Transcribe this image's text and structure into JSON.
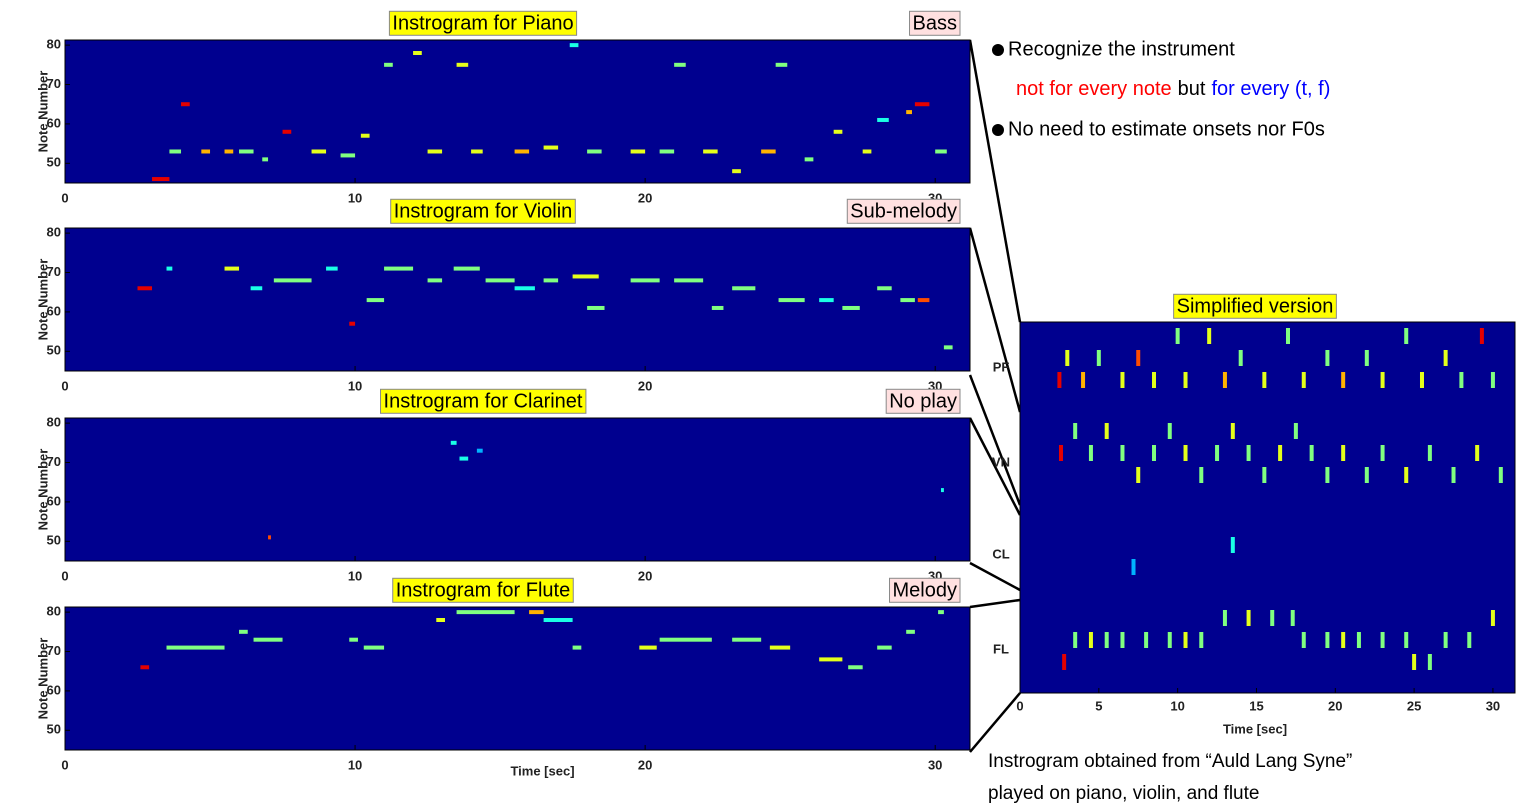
{
  "panels": [
    {
      "title": "Instrogram for Piano",
      "tag": "Bass",
      "ylabel": "Note Number",
      "ylim": [
        45,
        81.3
      ],
      "yticks": [
        50,
        60,
        70,
        80
      ],
      "xlim": [
        0,
        31.2
      ],
      "xticks": [
        0,
        10,
        20,
        30
      ],
      "notes": [
        [
          3,
          3.6,
          46,
          0.9
        ],
        [
          3.6,
          4,
          53,
          0.5
        ],
        [
          4,
          4.3,
          65,
          0.9
        ],
        [
          4.7,
          5,
          53,
          0.7
        ],
        [
          5.5,
          5.8,
          53,
          0.7
        ],
        [
          6,
          6.5,
          53,
          0.5
        ],
        [
          6.8,
          7,
          51,
          0.5
        ],
        [
          7.5,
          7.8,
          58,
          0.9
        ],
        [
          8.5,
          9,
          53,
          0.6
        ],
        [
          9.5,
          10,
          52,
          0.5
        ],
        [
          10.2,
          10.5,
          57,
          0.6
        ],
        [
          11,
          11.3,
          75,
          0.5
        ],
        [
          12,
          12.3,
          78,
          0.6
        ],
        [
          12.5,
          13,
          53,
          0.6
        ],
        [
          13.5,
          13.9,
          75,
          0.6
        ],
        [
          14,
          14.4,
          53,
          0.6
        ],
        [
          15.5,
          16,
          53,
          0.7
        ],
        [
          16.5,
          17,
          54,
          0.6
        ],
        [
          17.4,
          17.7,
          80,
          0.4
        ],
        [
          18,
          18.5,
          53,
          0.5
        ],
        [
          19.5,
          20,
          53,
          0.6
        ],
        [
          20.5,
          21,
          53,
          0.5
        ],
        [
          21,
          21.4,
          75,
          0.5
        ],
        [
          22,
          22.5,
          53,
          0.6
        ],
        [
          23,
          23.3,
          48,
          0.6
        ],
        [
          24,
          24.5,
          53,
          0.7
        ],
        [
          24.5,
          24.9,
          75,
          0.5
        ],
        [
          25.5,
          25.8,
          51,
          0.5
        ],
        [
          26.5,
          26.8,
          58,
          0.6
        ],
        [
          27.5,
          27.8,
          53,
          0.6
        ],
        [
          28,
          28.4,
          61,
          0.4
        ],
        [
          29,
          29.2,
          63,
          0.7
        ],
        [
          29.3,
          29.8,
          65,
          0.9
        ],
        [
          30,
          30.4,
          53,
          0.5
        ]
      ]
    },
    {
      "title": "Instrogram for Violin",
      "tag": "Sub-melody",
      "ylabel": "Note Number",
      "ylim": [
        45,
        81.3
      ],
      "yticks": [
        50,
        60,
        70,
        80
      ],
      "xlim": [
        0,
        31.2
      ],
      "xticks": [
        0,
        10,
        20,
        30
      ],
      "notes": [
        [
          2.5,
          3,
          66,
          0.9
        ],
        [
          3.5,
          3.7,
          71,
          0.4
        ],
        [
          5.5,
          6,
          71,
          0.6
        ],
        [
          6.4,
          6.8,
          66,
          0.4
        ],
        [
          7.2,
          8.5,
          68,
          0.5
        ],
        [
          9,
          9.4,
          71,
          0.4
        ],
        [
          9.8,
          10,
          57,
          0.9
        ],
        [
          10.4,
          11,
          63,
          0.5
        ],
        [
          11,
          12,
          71,
          0.5
        ],
        [
          12.5,
          13,
          68,
          0.5
        ],
        [
          13.4,
          14.3,
          71,
          0.5
        ],
        [
          14.5,
          15.5,
          68,
          0.5
        ],
        [
          15.5,
          16.2,
          66,
          0.4
        ],
        [
          16.5,
          17,
          68,
          0.5
        ],
        [
          17.5,
          18.4,
          69,
          0.6
        ],
        [
          18,
          18.6,
          61,
          0.5
        ],
        [
          19.5,
          20.5,
          68,
          0.5
        ],
        [
          21,
          22,
          68,
          0.5
        ],
        [
          22.3,
          22.7,
          61,
          0.5
        ],
        [
          23,
          23.8,
          66,
          0.5
        ],
        [
          24.6,
          25.5,
          63,
          0.5
        ],
        [
          26,
          26.5,
          63,
          0.4
        ],
        [
          26.8,
          27.4,
          61,
          0.5
        ],
        [
          28,
          28.5,
          66,
          0.5
        ],
        [
          28.8,
          29.3,
          63,
          0.5
        ],
        [
          29.4,
          29.8,
          63,
          0.8
        ],
        [
          30.3,
          30.6,
          51,
          0.5
        ]
      ]
    },
    {
      "title": "Instrogram for Clarinet",
      "tag": "No play",
      "ylabel": "Note Number",
      "ylim": [
        45,
        81.3
      ],
      "yticks": [
        50,
        60,
        70,
        80
      ],
      "xlim": [
        0,
        31.2
      ],
      "xticks": [
        0,
        10,
        20,
        30
      ],
      "notes": [
        [
          13.3,
          13.5,
          75,
          0.4
        ],
        [
          13.6,
          13.9,
          71,
          0.4
        ],
        [
          14.2,
          14.4,
          73,
          0.3
        ],
        [
          7,
          7.1,
          51,
          0.8
        ],
        [
          30.2,
          30.3,
          63,
          0.4
        ]
      ]
    },
    {
      "title": "Instrogram for Flute",
      "tag": "Melody",
      "ylabel": "Note Number",
      "ylim": [
        45,
        81.3
      ],
      "yticks": [
        50,
        60,
        70,
        80
      ],
      "xlim": [
        0,
        31.2
      ],
      "xticks": [
        0,
        10,
        20,
        30
      ],
      "xlabel": "Time [sec]",
      "notes": [
        [
          2.6,
          2.9,
          66,
          0.9
        ],
        [
          3.5,
          5.5,
          71,
          0.5
        ],
        [
          6,
          6.3,
          75,
          0.5
        ],
        [
          6.5,
          7.5,
          73,
          0.5
        ],
        [
          9.8,
          10.1,
          73,
          0.5
        ],
        [
          10.3,
          11,
          71,
          0.5
        ],
        [
          12.8,
          13.1,
          78,
          0.6
        ],
        [
          13.5,
          15.5,
          80,
          0.5
        ],
        [
          16,
          16.5,
          80,
          0.7
        ],
        [
          16.5,
          17.5,
          78,
          0.4
        ],
        [
          17.5,
          17.8,
          71,
          0.5
        ],
        [
          19.8,
          20.4,
          71,
          0.6
        ],
        [
          20.5,
          22.3,
          73,
          0.5
        ],
        [
          23,
          24,
          73,
          0.5
        ],
        [
          24.3,
          25,
          71,
          0.6
        ],
        [
          26,
          26.8,
          68,
          0.6
        ],
        [
          27,
          27.5,
          66,
          0.5
        ],
        [
          28,
          28.5,
          71,
          0.5
        ],
        [
          29,
          29.3,
          75,
          0.5
        ],
        [
          30.1,
          30.3,
          80,
          0.5
        ]
      ]
    }
  ],
  "simplified": {
    "title": "Simplified version",
    "xlabel": "Time [sec]",
    "xlim": [
      0,
      31.4
    ],
    "xticks": [
      0,
      5,
      10,
      15,
      20,
      25,
      30
    ],
    "rows": [
      {
        "label": "PF",
        "bars": [
          [
            2.5,
            2,
            0.9
          ],
          [
            3,
            1,
            0.6
          ],
          [
            4,
            2,
            0.7
          ],
          [
            5,
            1,
            0.5
          ],
          [
            6.5,
            2,
            0.6
          ],
          [
            7.5,
            1,
            0.8
          ],
          [
            8.5,
            2,
            0.6
          ],
          [
            10,
            0,
            0.5
          ],
          [
            10.5,
            2,
            0.6
          ],
          [
            12,
            0,
            0.6
          ],
          [
            13,
            2,
            0.7
          ],
          [
            14,
            1,
            0.5
          ],
          [
            15.5,
            2,
            0.6
          ],
          [
            17,
            0,
            0.5
          ],
          [
            18,
            2,
            0.6
          ],
          [
            19.5,
            1,
            0.5
          ],
          [
            20.5,
            2,
            0.7
          ],
          [
            22,
            1,
            0.5
          ],
          [
            23,
            2,
            0.6
          ],
          [
            24.5,
            0,
            0.5
          ],
          [
            25.5,
            2,
            0.6
          ],
          [
            27,
            1,
            0.6
          ],
          [
            28,
            2,
            0.5
          ],
          [
            29.3,
            0,
            0.9
          ],
          [
            30,
            2,
            0.5
          ]
        ]
      },
      {
        "label": "VN",
        "bars": [
          [
            2.6,
            1,
            0.9
          ],
          [
            3.5,
            0,
            0.5
          ],
          [
            4.5,
            1,
            0.5
          ],
          [
            5.5,
            0,
            0.6
          ],
          [
            6.5,
            1,
            0.5
          ],
          [
            7.5,
            2,
            0.6
          ],
          [
            8.5,
            1,
            0.5
          ],
          [
            9.5,
            0,
            0.5
          ],
          [
            10.5,
            1,
            0.6
          ],
          [
            11.5,
            2,
            0.5
          ],
          [
            12.5,
            1,
            0.5
          ],
          [
            13.5,
            0,
            0.6
          ],
          [
            14.5,
            1,
            0.5
          ],
          [
            15.5,
            2,
            0.5
          ],
          [
            16.5,
            1,
            0.6
          ],
          [
            17.5,
            0,
            0.5
          ],
          [
            18.5,
            1,
            0.5
          ],
          [
            19.5,
            2,
            0.5
          ],
          [
            20.5,
            1,
            0.6
          ],
          [
            22,
            2,
            0.5
          ],
          [
            23,
            1,
            0.5
          ],
          [
            24.5,
            2,
            0.6
          ],
          [
            26,
            1,
            0.5
          ],
          [
            27.5,
            2,
            0.5
          ],
          [
            29,
            1,
            0.6
          ],
          [
            30.5,
            2,
            0.5
          ]
        ]
      },
      {
        "label": "CL",
        "bars": [
          [
            13.5,
            1,
            0.4
          ],
          [
            7.2,
            2,
            0.3
          ]
        ]
      },
      {
        "label": "FL",
        "bars": [
          [
            2.8,
            2,
            0.9
          ],
          [
            3.5,
            1,
            0.5
          ],
          [
            4.5,
            1,
            0.6
          ],
          [
            5.5,
            1,
            0.5
          ],
          [
            6.5,
            1,
            0.5
          ],
          [
            8,
            1,
            0.5
          ],
          [
            9.5,
            1,
            0.5
          ],
          [
            10.5,
            1,
            0.6
          ],
          [
            11.5,
            1,
            0.5
          ],
          [
            13,
            0,
            0.5
          ],
          [
            14.5,
            0,
            0.6
          ],
          [
            16,
            0,
            0.5
          ],
          [
            17.3,
            0,
            0.5
          ],
          [
            18,
            1,
            0.5
          ],
          [
            19.5,
            1,
            0.5
          ],
          [
            20.5,
            1,
            0.6
          ],
          [
            21.5,
            1,
            0.5
          ],
          [
            23,
            1,
            0.5
          ],
          [
            24.5,
            1,
            0.5
          ],
          [
            25,
            2,
            0.6
          ],
          [
            26,
            2,
            0.5
          ],
          [
            27,
            1,
            0.5
          ],
          [
            28.5,
            1,
            0.5
          ],
          [
            30,
            0,
            0.6
          ]
        ]
      }
    ]
  },
  "bullets": [
    {
      "lines": [
        "Recognize the instrument"
      ],
      "red": "not for every note",
      "mid": "but",
      "blue": "for every (t, f)"
    },
    {
      "lines": [
        "No need to estimate onsets nor F0s"
      ]
    }
  ],
  "caption": [
    "Instrogram obtained from “Auld Lang Syne”",
    "played on piano, violin, and flute"
  ]
}
